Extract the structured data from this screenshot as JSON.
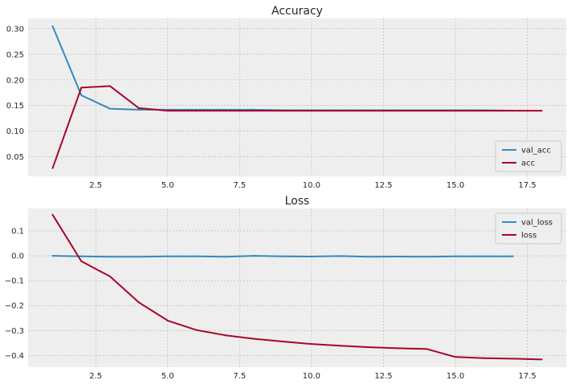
{
  "chart_data": [
    {
      "type": "line",
      "title": "Accuracy",
      "xlabel": "",
      "ylabel": "",
      "xlim": [
        0.15,
        18.85
      ],
      "ylim": [
        0.012,
        0.32
      ],
      "xticks": [
        2.5,
        5.0,
        7.5,
        10.0,
        12.5,
        15.0,
        17.5
      ],
      "xtick_labels": [
        "2.5",
        "5.0",
        "7.5",
        "10.0",
        "12.5",
        "15.0",
        "17.5"
      ],
      "yticks": [
        0.05,
        0.1,
        0.15,
        0.2,
        0.25,
        0.3
      ],
      "ytick_labels": [
        "0.05",
        "0.10",
        "0.15",
        "0.20",
        "0.25",
        "0.30"
      ],
      "grid": true,
      "legend_position": "lower-right",
      "series": [
        {
          "name": "val_acc",
          "color": "#348ABD",
          "x": [
            1,
            2,
            3,
            4,
            5,
            6,
            7,
            8,
            9,
            10,
            11,
            12,
            13,
            14,
            15,
            16,
            17
          ],
          "y": [
            0.305,
            0.17,
            0.144,
            0.142,
            0.142,
            0.142,
            0.142,
            0.142,
            0.141,
            0.141,
            0.141,
            0.141,
            0.141,
            0.141,
            0.141,
            0.141,
            0.14
          ]
        },
        {
          "name": "acc",
          "color": "#A60628",
          "x": [
            1,
            2,
            3,
            4,
            5,
            6,
            7,
            8,
            9,
            10,
            11,
            12,
            13,
            14,
            15,
            16,
            17,
            18
          ],
          "y": [
            0.028,
            0.185,
            0.188,
            0.145,
            0.14,
            0.14,
            0.14,
            0.14,
            0.14,
            0.14,
            0.14,
            0.14,
            0.14,
            0.14,
            0.14,
            0.14,
            0.14,
            0.14
          ]
        }
      ]
    },
    {
      "type": "line",
      "title": "Loss",
      "xlabel": "",
      "ylabel": "",
      "xlim": [
        0.15,
        18.85
      ],
      "ylim": [
        -0.447,
        0.19
      ],
      "xticks": [
        2.5,
        5.0,
        7.5,
        10.0,
        12.5,
        15.0,
        17.5
      ],
      "xtick_labels": [
        "2.5",
        "5.0",
        "7.5",
        "10.0",
        "12.5",
        "15.0",
        "17.5"
      ],
      "yticks": [
        -0.4,
        -0.3,
        -0.2,
        -0.1,
        0.0,
        0.1
      ],
      "ytick_labels": [
        "−0.4",
        "−0.3",
        "−0.2",
        "−0.1",
        "0.0",
        "0.1"
      ],
      "grid": true,
      "legend_position": "upper-right",
      "series": [
        {
          "name": "val_loss",
          "color": "#348ABD",
          "x": [
            1,
            2,
            3,
            4,
            5,
            6,
            7,
            8,
            9,
            10,
            11,
            12,
            13,
            14,
            15,
            16,
            17
          ],
          "y": [
            0.0,
            -0.002,
            -0.004,
            -0.004,
            -0.002,
            -0.002,
            -0.004,
            0.0,
            -0.002,
            -0.003,
            -0.001,
            -0.004,
            -0.003,
            -0.004,
            -0.002,
            -0.002,
            -0.002
          ]
        },
        {
          "name": "loss",
          "color": "#A60628",
          "x": [
            1,
            2,
            3,
            4,
            5,
            6,
            7,
            8,
            9,
            10,
            11,
            12,
            13,
            14,
            15,
            16,
            17,
            18
          ],
          "y": [
            0.165,
            -0.022,
            -0.083,
            -0.187,
            -0.26,
            -0.298,
            -0.319,
            -0.333,
            -0.344,
            -0.354,
            -0.361,
            -0.367,
            -0.371,
            -0.374,
            -0.406,
            -0.411,
            -0.413,
            -0.416
          ]
        }
      ]
    }
  ]
}
